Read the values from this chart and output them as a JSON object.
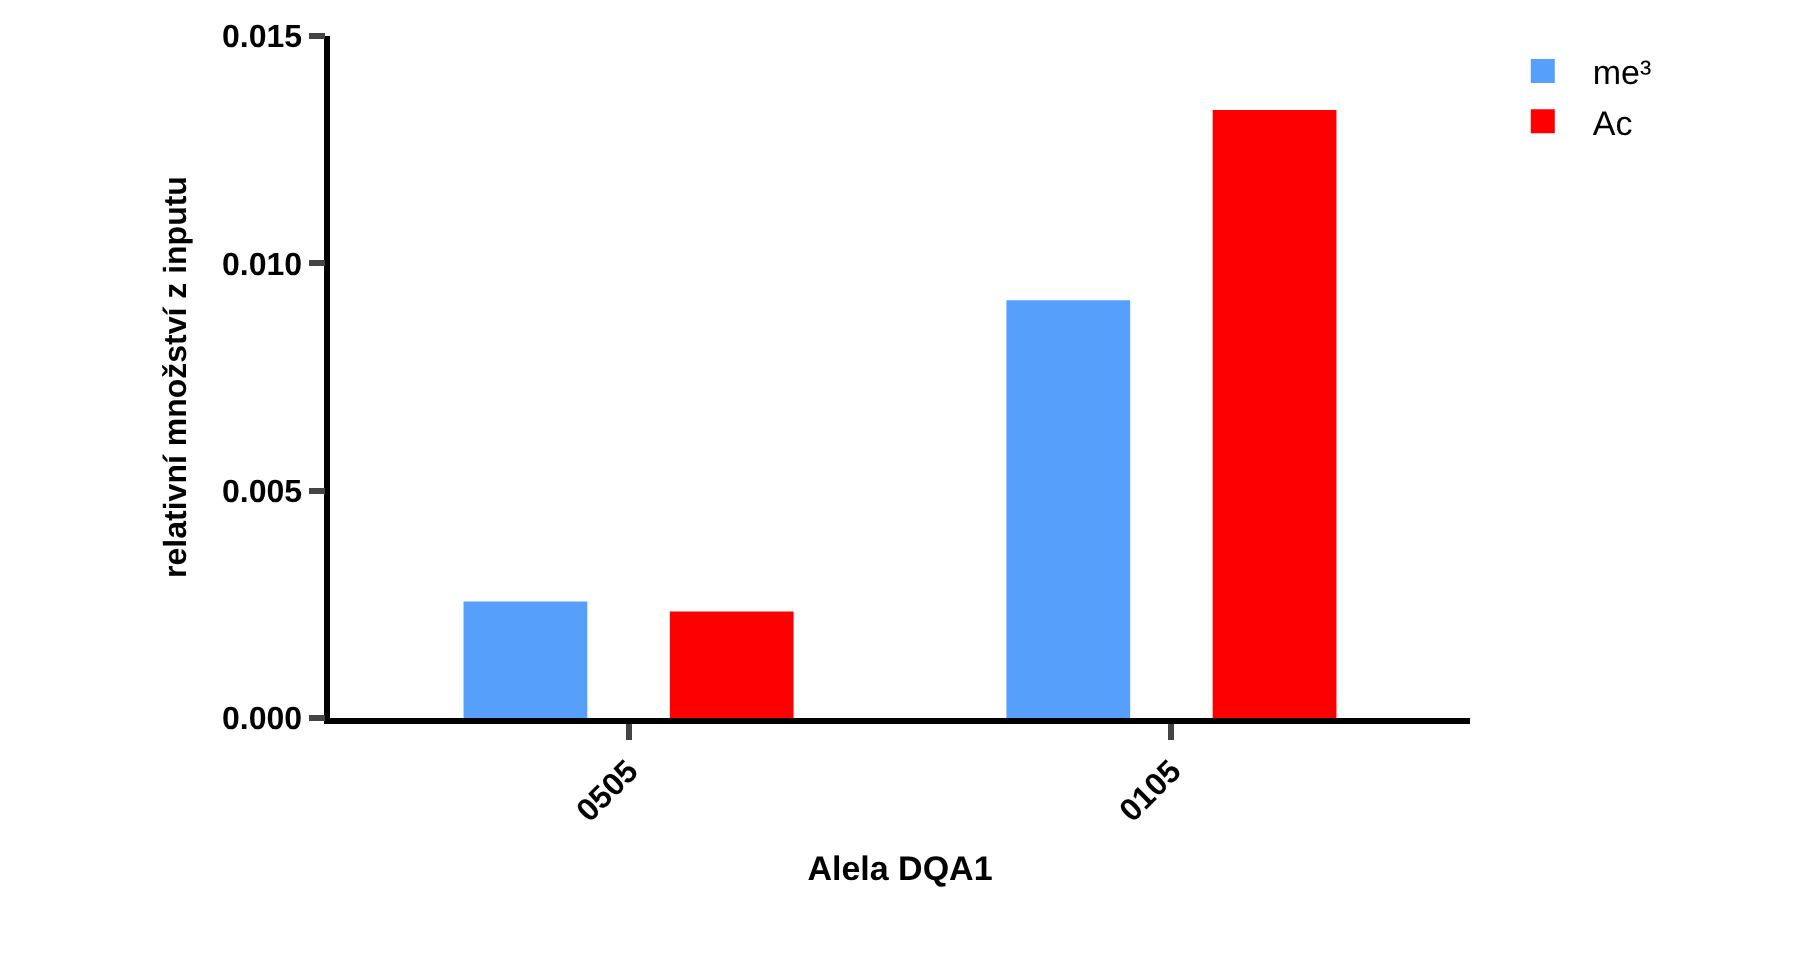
{
  "chart_data": {
    "type": "bar",
    "xlabel": "Alela DQA1",
    "ylabel": "relativní množství z inputu",
    "categories": [
      "0505",
      "0105"
    ],
    "series": [
      {
        "name": "me³",
        "color": "#56a0fc",
        "values": [
          0.00256,
          0.00919
        ]
      },
      {
        "name": "Ac",
        "color": "#fd0000",
        "values": [
          0.00234,
          0.01337
        ]
      }
    ],
    "ylim": [
      0,
      0.015
    ],
    "yticks": [
      {
        "value": 0,
        "label": "0.000"
      },
      {
        "value": 0.005,
        "label": "0.005"
      },
      {
        "value": 0.01,
        "label": "0.010"
      },
      {
        "value": 0.015,
        "label": "0.015"
      }
    ],
    "legend": "top right"
  }
}
